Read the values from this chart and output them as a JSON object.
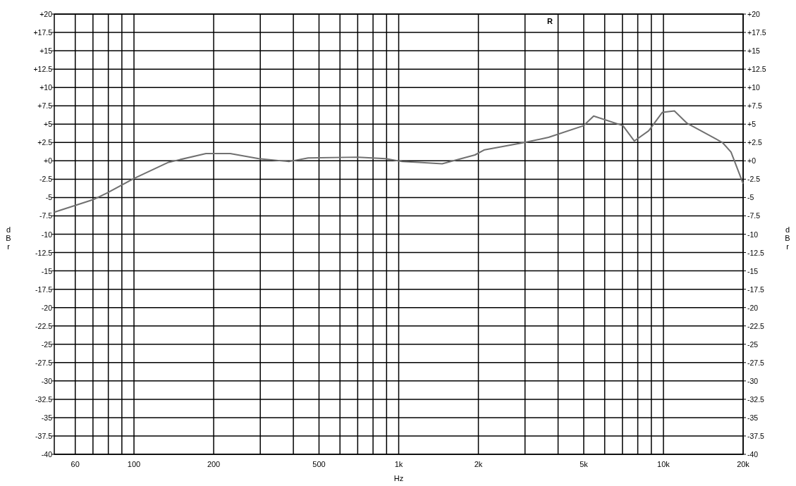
{
  "chart_data": {
    "type": "line",
    "xlabel": "Hz",
    "ylabel": "dBr",
    "y2label": "dBr",
    "log": "x",
    "grid": true,
    "line_style": "solid",
    "annotations": [
      "R"
    ],
    "xlim": [
      50,
      20000
    ],
    "xticks": [
      60,
      {
        "value": 70,
        "label": null
      },
      {
        "value": 80,
        "label": null
      },
      {
        "value": 90,
        "label": null
      },
      100,
      200,
      {
        "value": 300,
        "label": null
      },
      {
        "value": 400,
        "label": null
      },
      500,
      {
        "value": 600,
        "label": null
      },
      {
        "value": 700,
        "label": null
      },
      {
        "value": 800,
        "label": null
      },
      {
        "value": 900,
        "label": null
      },
      {
        "value": 1000,
        "label": "1k"
      },
      {
        "value": 2000,
        "label": "2k"
      },
      {
        "value": 3000,
        "label": null
      },
      {
        "value": 4000,
        "label": null
      },
      {
        "value": 5000,
        "label": "5k"
      },
      {
        "value": 6000,
        "label": null
      },
      {
        "value": 7000,
        "label": null
      },
      {
        "value": 8000,
        "label": null
      },
      {
        "value": 9000,
        "label": null
      },
      {
        "value": 10000,
        "label": "10k"
      },
      {
        "value": 20000,
        "label": "20k"
      }
    ],
    "ylim": [
      -40,
      20
    ],
    "yticks": [
      {
        "value": 20,
        "label": "+20"
      },
      {
        "value": 17.5,
        "label": "+17.5"
      },
      {
        "value": 15,
        "label": "+15"
      },
      {
        "value": 12.5,
        "label": "+12.5"
      },
      {
        "value": 10,
        "label": "+10"
      },
      {
        "value": 7.5,
        "label": "+7.5"
      },
      {
        "value": 5,
        "label": "+5"
      },
      {
        "value": 2.5,
        "label": "+2.5"
      },
      {
        "value": 0,
        "label": "+0"
      },
      -2.5,
      -5,
      -7.5,
      -10,
      -12.5,
      -15,
      -17.5,
      -20,
      -22.5,
      -25,
      -27.5,
      -30,
      -32.5,
      -35,
      -37.5,
      -40
    ],
    "y2lim": [
      -40,
      20
    ],
    "y2ticks": [
      {
        "value": 20,
        "label": "+20"
      },
      {
        "value": 17.5,
        "label": "+17.5"
      },
      {
        "value": 15,
        "label": "+15"
      },
      {
        "value": 12.5,
        "label": "+12.5"
      },
      {
        "value": 10,
        "label": "+10"
      },
      {
        "value": 7.5,
        "label": "+7.5"
      },
      {
        "value": 5,
        "label": "+5"
      },
      {
        "value": 2.5,
        "label": "+2.5"
      },
      {
        "value": 0,
        "label": "+0"
      },
      -2.5,
      -5,
      -7.5,
      -10,
      -12.5,
      -15,
      -17.5,
      -20,
      -22.5,
      -25,
      -27.5,
      -30,
      -32.5,
      -35,
      -37.5,
      -40
    ],
    "series": [
      {
        "color": "#707070",
        "x": [
          50,
          70,
          79,
          100,
          135,
          187,
          231,
          296,
          385,
          455,
          700,
          893,
          1030,
          1190,
          1460,
          1940,
          2110,
          2990,
          3680,
          5000,
          5450,
          7030,
          7760,
          8800,
          9900,
          11000,
          12300,
          16700,
          18000,
          20000
        ],
        "values": [
          -7.0,
          -5.3,
          -4.4,
          -2.4,
          -0.2,
          1.0,
          1.0,
          0.3,
          -0.1,
          0.4,
          0.5,
          0.3,
          -0.1,
          -0.2,
          -0.4,
          0.8,
          1.5,
          2.5,
          3.2,
          4.8,
          6.1,
          4.8,
          2.7,
          4.1,
          6.6,
          6.8,
          5.1,
          2.5,
          1.2,
          -3.1
        ]
      }
    ]
  }
}
